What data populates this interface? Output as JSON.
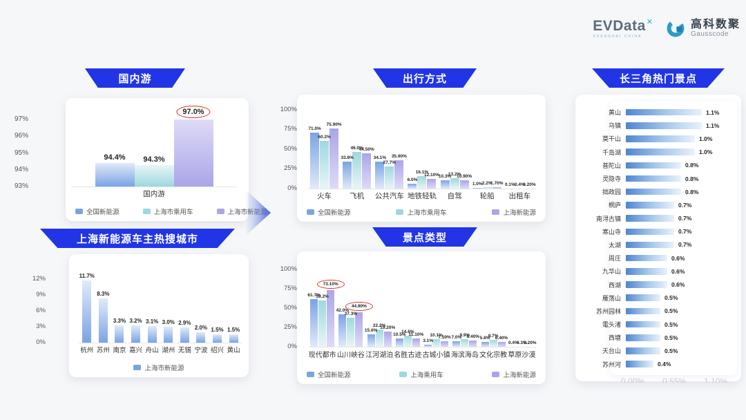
{
  "logo": {
    "evdata_text": "EVData",
    "evdata_sup": "✕",
    "evdata_sub": "SHANGHAI CHINA",
    "gauss_cn": "高科数聚",
    "gauss_en": "Gausscode"
  },
  "colors": {
    "banner": "#2135e6",
    "circle_red": "#e0301f",
    "blue_strong": "#7aa3e4",
    "blue_light": "#e0eafa",
    "cyan_strong": "#9ed8de",
    "cyan_light": "#e8f5f6",
    "purple_strong": "#aba5e8",
    "purple_light": "#dedbf7",
    "hbar_start": "#4e86d0",
    "hbar_end": "#e9f2fb"
  },
  "chart_data": [
    {
      "type": "bar",
      "title": "国内游",
      "xlabel": "国内游",
      "ylim": [
        93,
        97.55
      ],
      "yticks": [
        {
          "v": 93,
          "t": "93%"
        },
        {
          "v": 94,
          "t": "94%"
        },
        {
          "v": 95,
          "t": "95%"
        },
        {
          "v": 96,
          "t": "96%"
        },
        {
          "v": 97,
          "t": "97%"
        }
      ],
      "categories": [
        "国内游"
      ],
      "series": [
        {
          "name": "全国新能源",
          "color": "blue",
          "values": [
            94.4
          ],
          "labels": [
            "94.4%"
          ]
        },
        {
          "name": "上海市乘用车",
          "color": "cyan",
          "values": [
            94.3
          ],
          "labels": [
            "94.3%"
          ]
        },
        {
          "name": "上海市新能源",
          "color": "purple",
          "values": [
            97.0
          ],
          "labels": [
            "97.0%"
          ]
        }
      ],
      "circled": [
        {
          "series": 2,
          "index": 0
        }
      ],
      "legend_position": "bottom"
    },
    {
      "type": "bar",
      "title": "上海新能源车主热搜城市",
      "ylim": [
        0,
        13
      ],
      "yticks": [
        {
          "v": 0,
          "t": "0%"
        },
        {
          "v": 3,
          "t": "3%"
        },
        {
          "v": 6,
          "t": "6%"
        },
        {
          "v": 9,
          "t": "9%"
        },
        {
          "v": 12,
          "t": "12%"
        }
      ],
      "categories": [
        "杭州",
        "苏州",
        "南京",
        "嘉兴",
        "舟山",
        "湖州",
        "无锡",
        "宁波",
        "绍兴",
        "黄山"
      ],
      "series": [
        {
          "name": "上海市新能源",
          "color": "blue",
          "values": [
            11.7,
            8.3,
            3.3,
            3.2,
            3.1,
            3.0,
            2.9,
            2.0,
            1.5,
            1.5
          ],
          "labels": [
            "11.7%",
            "8.3%",
            "3.3%",
            "3.2%",
            "3.1%",
            "3.0%",
            "2.9%",
            "2.0%",
            "1.5%",
            "1.5%"
          ]
        }
      ],
      "legend_position": "bottom"
    },
    {
      "type": "bar",
      "title": "出行方式",
      "ylim": [
        0,
        105
      ],
      "yticks": [
        {
          "v": 0,
          "t": "0%"
        },
        {
          "v": 25,
          "t": "25%"
        },
        {
          "v": 50,
          "t": "50%"
        },
        {
          "v": 75,
          "t": "75%"
        },
        {
          "v": 100,
          "t": "100%"
        }
      ],
      "categories": [
        "火车",
        "飞机",
        "公共汽车",
        "地铁轻轨",
        "自驾",
        "轮船",
        "出租车"
      ],
      "series": [
        {
          "name": "全国新能源",
          "color": "blue",
          "values": [
            71.0,
            33.8,
            34.1,
            6.0,
            10.3,
            1.0,
            0.1
          ],
          "labels": [
            "71.0%",
            "33.8%",
            "34.1%",
            "6.0%",
            "10.3%",
            "1.0%",
            "0.1%"
          ]
        },
        {
          "name": "上海市乘用车",
          "color": "cyan",
          "values": [
            60.2,
            46.0,
            27.7,
            16.1,
            13.2,
            2.2,
            0.4
          ],
          "labels": [
            "60.2%",
            "46.0%",
            "27.7%",
            "16.1%",
            "13.2%",
            "2.2%",
            "0.4%"
          ]
        },
        {
          "name": "上海新能源",
          "color": "purple",
          "values": [
            75.9,
            44.5,
            35.9,
            12.1,
            10.9,
            1.7,
            0.2
          ],
          "labels": [
            "75.90%",
            "44.50%",
            "35.90%",
            "12.10%",
            "10.90%",
            "1.70%",
            "0.20%"
          ]
        }
      ],
      "legend_position": "bottom"
    },
    {
      "type": "bar",
      "title": "景点类型",
      "ylim": [
        0,
        105
      ],
      "yticks": [
        {
          "v": 0,
          "t": "0%"
        },
        {
          "v": 25,
          "t": "25%"
        },
        {
          "v": 50,
          "t": "50%"
        },
        {
          "v": 75,
          "t": "75%"
        },
        {
          "v": 100,
          "t": "100%"
        }
      ],
      "categories": [
        "现代都市",
        "山川峡谷",
        "江河湖泊",
        "名胜古迹",
        "古城小镇",
        "海滨海岛",
        "文化宗教",
        "草原沙漠"
      ],
      "series": [
        {
          "name": "全国新能源",
          "color": "blue",
          "values": [
            61.7,
            42.0,
            15.6,
            10.5,
            3.1,
            7.0,
            5.8,
            0.4
          ],
          "labels": [
            "61.7%",
            "42.0%",
            "15.6%",
            "10.5%",
            "3.1%",
            "7.0%",
            "5.8%",
            "0.4%"
          ]
        },
        {
          "name": "上海乘用车",
          "color": "cyan",
          "values": [
            59.2,
            37.3,
            22.2,
            14.6,
            10.1,
            9.9,
            8.7,
            0.3
          ],
          "labels": [
            "59.2%",
            "37.3%",
            "22.2%",
            "14.6%",
            "10.1%",
            "9.9%",
            "8.7%",
            "0.3%"
          ]
        },
        {
          "name": "上海新能源",
          "color": "purple",
          "values": [
            73.1,
            44.9,
            19.2,
            11.1,
            7.5,
            8.4,
            6.4,
            0.2
          ],
          "labels": [
            "73.10%",
            "44.90%",
            "19.20%",
            "11.10%",
            "7.50%",
            "8.40%",
            "6.40%",
            "0.20%"
          ]
        }
      ],
      "circled": [
        {
          "series": 2,
          "index": 0
        },
        {
          "series": 2,
          "index": 1
        }
      ],
      "legend_position": "bottom"
    },
    {
      "type": "bar",
      "orientation": "horizontal",
      "title": "长三角热门景点",
      "xlim": [
        0,
        1.2
      ],
      "rows": [
        {
          "name": "黄山",
          "value": 1.1,
          "label": "1.1%"
        },
        {
          "name": "乌镇",
          "value": 1.1,
          "label": "1.1%"
        },
        {
          "name": "莫干山",
          "value": 1.0,
          "label": "1.0%"
        },
        {
          "name": "千岛湖",
          "value": 1.0,
          "label": "1.0%"
        },
        {
          "name": "普陀山",
          "value": 0.8,
          "label": "0.8%"
        },
        {
          "name": "灵隐寺",
          "value": 0.8,
          "label": "0.8%"
        },
        {
          "name": "拙政园",
          "value": 0.8,
          "label": "0.8%"
        },
        {
          "name": "桐庐",
          "value": 0.7,
          "label": "0.7%"
        },
        {
          "name": "南浔古镇",
          "value": 0.7,
          "label": "0.7%"
        },
        {
          "name": "寒山寺",
          "value": 0.7,
          "label": "0.7%"
        },
        {
          "name": "太湖",
          "value": 0.7,
          "label": "0.7%"
        },
        {
          "name": "周庄",
          "value": 0.6,
          "label": "0.6%"
        },
        {
          "name": "九华山",
          "value": 0.6,
          "label": "0.6%"
        },
        {
          "name": "西湖",
          "value": 0.6,
          "label": "0.6%"
        },
        {
          "name": "雁荡山",
          "value": 0.5,
          "label": "0.5%"
        },
        {
          "name": "苏州园林",
          "value": 0.5,
          "label": "0.5%"
        },
        {
          "name": "電头渚",
          "value": 0.5,
          "label": "0.5%"
        },
        {
          "name": "西塘",
          "value": 0.5,
          "label": "0.5%"
        },
        {
          "name": "天台山",
          "value": 0.5,
          "label": "0.5%"
        },
        {
          "name": "苏州河",
          "value": 0.4,
          "label": "0.4%"
        }
      ],
      "axis_hint": [
        "0.00%",
        "0.55%",
        "1.10%"
      ]
    }
  ]
}
